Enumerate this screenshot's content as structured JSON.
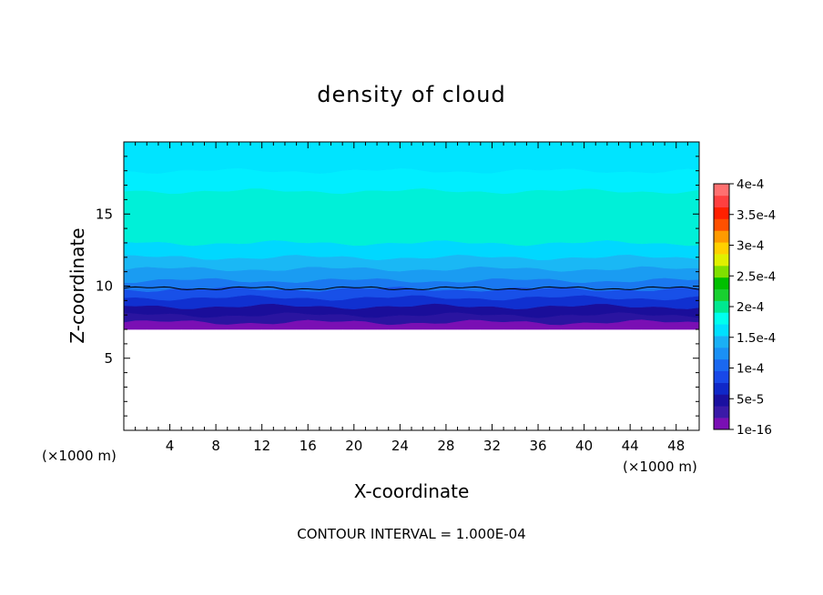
{
  "chart_data": {
    "type": "heatmap",
    "title": "density of cloud",
    "xlabel": "X-coordinate",
    "ylabel": "Z-coordinate",
    "x_unit": "(×1000 m)",
    "z_unit": "(×1000 m)",
    "xlim": [
      0,
      50
    ],
    "ylim": [
      0,
      20
    ],
    "x_ticks": [
      4,
      8,
      12,
      16,
      20,
      24,
      28,
      32,
      36,
      40,
      44,
      48
    ],
    "y_ticks": [
      5,
      10,
      15
    ],
    "footer": "CONTOUR INTERVAL = 1.000E-04",
    "colorbar": {
      "labels": [
        "1e-16",
        "5e-5",
        "1e-4",
        "1.5e-4",
        "2e-4",
        "2.5e-4",
        "3e-4",
        "3.5e-4",
        "4e-4"
      ],
      "colors": [
        "#7a0fb4",
        "#3a1aa8",
        "#1a10a0",
        "#1028c8",
        "#1848e8",
        "#1a68f0",
        "#1a90f5",
        "#1ab0f5",
        "#00e0ff",
        "#00ffee",
        "#00e890",
        "#18d030",
        "#00c000",
        "#80e000",
        "#e0f000",
        "#ffd000",
        "#ff9a00",
        "#ff5000",
        "#ff2000",
        "#ff4040",
        "#ff7070"
      ]
    },
    "bands": [
      {
        "z0": 7.0,
        "z1": 7.5,
        "color": "#7a0fb4"
      },
      {
        "z0": 7.5,
        "z1": 8.0,
        "color": "#2a14a0"
      },
      {
        "z0": 8.0,
        "z1": 8.6,
        "color": "#1a0e9a"
      },
      {
        "z0": 8.6,
        "z1": 9.2,
        "color": "#1030d0"
      },
      {
        "z0": 9.2,
        "z1": 9.8,
        "color": "#1850e8"
      },
      {
        "z0": 9.8,
        "z1": 10.4,
        "color": "#1a78f0"
      },
      {
        "z0": 10.4,
        "z1": 11.2,
        "color": "#1a9cf2"
      },
      {
        "z0": 11.2,
        "z1": 12.0,
        "color": "#1ab8f5"
      },
      {
        "z0": 12.0,
        "z1": 13.0,
        "color": "#00d8ff"
      },
      {
        "z0": 13.0,
        "z1": 16.6,
        "color": "#00f0d8"
      },
      {
        "z0": 16.6,
        "z1": 18.0,
        "color": "#00eeff"
      },
      {
        "z0": 18.0,
        "z1": 20.0,
        "color": "#00e4ff"
      }
    ],
    "contour_line": {
      "z": 9.85,
      "color": "#000000"
    }
  }
}
